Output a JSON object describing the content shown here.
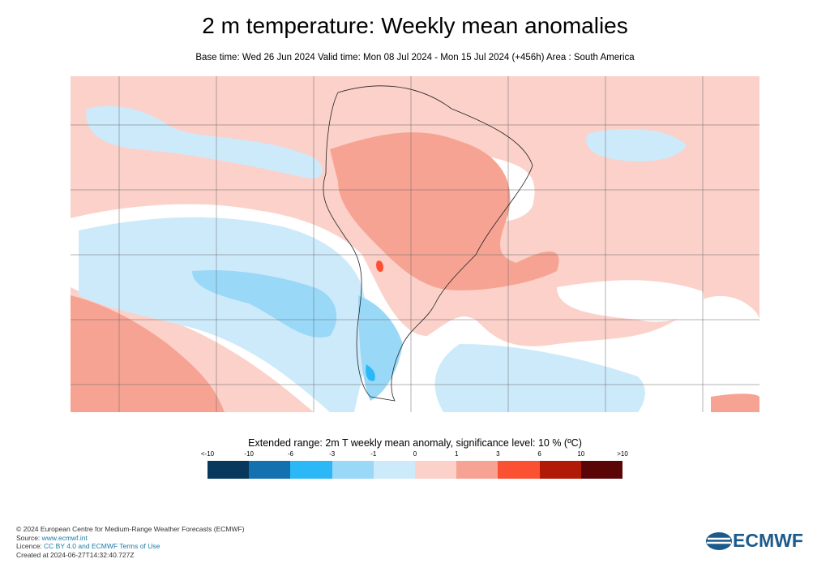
{
  "title": "2 m temperature: Weekly mean anomalies",
  "subtitle": "Base time: Wed 26 Jun 2024 Valid time: Mon 08 Jul 2024 - Mon 15 Jul 2024 (+456h) Area : South America",
  "chart_data": {
    "type": "heatmap",
    "title": "2 m temperature: Weekly mean anomalies",
    "region": "South America",
    "legend_title": "Extended range: 2m T weekly mean anomaly, significance level: 10 % (ºC)",
    "ticks": [
      "<-10",
      "-10",
      "-6",
      "-3",
      "-1",
      "0",
      "1",
      "3",
      "6",
      "10",
      ">10"
    ],
    "colors": [
      "#08395c",
      "#1471b0",
      "#2cb8f6",
      "#9ad8f8",
      "#cdeafb",
      "#fbd1c9",
      "#f7a393",
      "#fc5032",
      "#b21a08",
      "#5a0606"
    ]
  },
  "footer": {
    "copyright": "© 2024 European Centre for Medium-Range Weather Forecasts (ECMWF)",
    "source_label": "Source: ",
    "source_link": "www.ecmwf.int",
    "licence_label": "Licence: ",
    "licence_link": "CC BY 4.0 and ECMWF Terms of Use",
    "created": "Created at 2024-06-27T14:32:40.727Z"
  },
  "logo": "ECMWF"
}
